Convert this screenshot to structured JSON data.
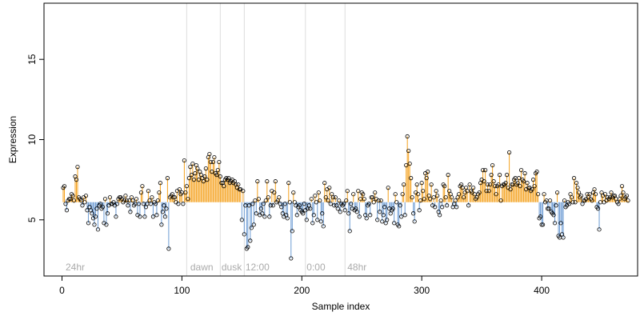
{
  "chart_data": {
    "type": "scatter",
    "xlabel": "Sample index",
    "ylabel": "Expression",
    "xlim": [
      -15,
      480
    ],
    "ylim": [
      1.5,
      18.5
    ],
    "x_ticks": [
      0,
      100,
      200,
      300,
      400
    ],
    "y_ticks": [
      5,
      10,
      15
    ],
    "baseline": 6.1,
    "colors": {
      "point_stroke": "#000000",
      "above_baseline": "#f4a11d",
      "below_baseline": "#6a9ad3",
      "vertical_lines": "#dddddd",
      "annotation_text": "#aaaaaa",
      "axis": "#000000"
    },
    "vlines": [
      104,
      132,
      152,
      203,
      236
    ],
    "annotations": [
      {
        "x": 3,
        "label": "24hr"
      },
      {
        "x": 107,
        "label": "dawn"
      },
      {
        "x": 133,
        "label": "dusk"
      },
      {
        "x": 153,
        "label": "12:00"
      },
      {
        "x": 204,
        "label": "0:00"
      },
      {
        "x": 238,
        "label": "48hr"
      }
    ],
    "values": [
      7.0,
      7.1,
      6.0,
      5.6,
      6.2,
      6.3,
      6.3,
      6.6,
      6.5,
      6.2,
      7.7,
      7.5,
      8.3,
      6.4,
      6.3,
      6.2,
      5.9,
      6.4,
      6.1,
      6.5,
      5.6,
      4.8,
      5.8,
      5.6,
      5.4,
      5.1,
      4.7,
      5.2,
      5.7,
      4.4,
      5.9,
      6.0,
      5.7,
      5.8,
      4.8,
      6.3,
      4.7,
      5.4,
      5.9,
      6.4,
      6.0,
      6.0,
      6.1,
      5.9,
      5.2,
      6.0,
      6.3,
      6.4,
      6.4,
      6.3,
      6.1,
      6.2,
      6.5,
      6.2,
      5.9,
      6.2,
      5.5,
      6.4,
      6.2,
      5.9,
      6.0,
      6.3,
      5.3,
      6.0,
      5.2,
      6.7,
      7.1,
      6.0,
      5.2,
      5.8,
      6.0,
      6.8,
      6.2,
      6.0,
      6.4,
      5.2,
      6.1,
      6.0,
      5.3,
      6.2,
      6.7,
      7.3,
      4.7,
      5.5,
      5.9,
      5.2,
      5.7,
      7.6,
      3.2,
      6.4,
      6.5,
      6.6,
      6.4,
      6.4,
      6.1,
      6.8,
      6.0,
      6.9,
      6.6,
      6.7,
      6.0,
      8.7,
      6.7,
      7.1,
      6.3,
      7.6,
      8.3,
      7.8,
      8.5,
      7.5,
      7.9,
      8.4,
      8.2,
      7.5,
      8.0,
      7.8,
      7.6,
      7.4,
      7.7,
      8.2,
      7.5,
      8.9,
      9.1,
      8.6,
      8.0,
      8.6,
      8.9,
      7.9,
      7.8,
      8.1,
      8.6,
      7.7,
      7.3,
      7.3,
      7.1,
      7.5,
      7.6,
      7.5,
      7.6,
      7.3,
      7.4,
      7.5,
      7.3,
      7.4,
      7.2,
      7.0,
      7.2,
      6.9,
      6.9,
      5.0,
      6.8,
      4.1,
      5.9,
      3.2,
      3.3,
      5.9,
      3.7,
      4.5,
      6.0,
      4.7,
      6.2,
      5.4,
      7.4,
      6.3,
      5.3,
      5.7,
      5.4,
      6.0,
      5.2,
      6.2,
      7.4,
      6.4,
      5.2,
      5.9,
      6.8,
      5.9,
      6.7,
      7.4,
      6.1,
      6.2,
      6.4,
      6.0,
      5.8,
      5.4,
      5.2,
      6.0,
      5.3,
      5.1,
      7.3,
      6.1,
      2.6,
      4.3,
      6.7,
      6.1,
      5.9,
      5.3,
      5.8,
      5.9,
      5.6,
      5.5,
      5.4,
      6.0,
      5.6,
      5.0,
      5.7,
      5.9,
      5.7,
      6.3,
      4.8,
      5.3,
      6.5,
      6.1,
      5.0,
      6.7,
      6.2,
      4.9,
      5.4,
      4.6,
      7.3,
      6.4,
      6.9,
      6.2,
      7.0,
      6.0,
      6.6,
      6.4,
      5.9,
      6.4,
      5.9,
      5.7,
      6.2,
      5.5,
      6.0,
      5.9,
      6.0,
      5.6,
      6.2,
      6.8,
      5.4,
      4.3,
      6.0,
      5.7,
      6.6,
      5.6,
      5.7,
      5.5,
      6.8,
      5.2,
      6.3,
      6.7,
      6.6,
      6.3,
      5.3,
      5.1,
      5.9,
      6.0,
      5.3,
      6.4,
      6.4,
      6.1,
      6.7,
      6.3,
      5.0,
      6.2,
      5.5,
      6.2,
      4.9,
      5.3,
      5.8,
      4.8,
      5.0,
      7.0,
      5.7,
      5.4,
      5.6,
      5.7,
      4.8,
      6.6,
      6.1,
      4.7,
      4.6,
      5.9,
      5.2,
      6.6,
      7.2,
      5.3,
      8.4,
      10.2,
      9.3,
      8.5,
      7.6,
      6.4,
      5.4,
      4.9,
      6.7,
      7.2,
      6.6,
      5.6,
      6.2,
      7.3,
      6.8,
      6.3,
      7.9,
      7.6,
      8.0,
      6.5,
      6.3,
      7.2,
      5.9,
      6.4,
      5.8,
      6.8,
      6.5,
      5.5,
      5.3,
      6.2,
      5.8,
      7.2,
      7.1,
      6.4,
      5.9,
      7.8,
      6.8,
      6.6,
      6.4,
      5.8,
      6.0,
      6.2,
      5.8,
      6.4,
      6.6,
      7.1,
      7.2,
      7.0,
      6.4,
      6.7,
      7.0,
      6.8,
      5.9,
      7.2,
      6.8,
      6.7,
      7.0,
      6.6,
      6.3,
      6.4,
      6.6,
      6.7,
      7.3,
      7.5,
      8.1,
      7.4,
      8.1,
      6.8,
      7.2,
      6.8,
      7.2,
      7.8,
      8.4,
      7.4,
      7.1,
      6.6,
      7.1,
      7.2,
      7.8,
      6.2,
      7.1,
      7.2,
      7.2,
      7.3,
      7.8,
      7.0,
      9.2,
      6.9,
      7.2,
      7.2,
      7.5,
      7.6,
      7.2,
      7.3,
      7.6,
      7.1,
      8.1,
      7.5,
      7.4,
      7.9,
      6.9,
      7.3,
      7.0,
      7.0,
      6.8,
      6.9,
      7.5,
      7.1,
      7.9,
      8.0,
      6.6,
      5.1,
      5.2,
      4.7,
      4.7,
      6.6,
      6.1,
      6.2,
      5.7,
      5.7,
      6.2,
      5.5,
      5.4,
      5.3,
      4.8,
      5.9,
      6.7,
      4.0,
      3.9,
      4.8,
      4.1,
      3.9,
      6.2,
      5.8,
      5.9,
      6.1,
      6.0,
      6.6,
      6.4,
      6.1,
      7.6,
      6.1,
      7.3,
      7.0,
      6.7,
      6.4,
      6.5,
      6.0,
      6.2,
      6.2,
      6.3,
      6.6,
      6.4,
      6.6,
      6.3,
      6.2,
      6.7,
      6.9,
      6.6,
      5.8,
      5.7,
      4.4,
      6.1,
      6.7,
      6.5,
      6.1,
      6.6,
      6.2,
      6.4,
      6.3,
      6.4,
      6.7,
      6.4,
      6.5,
      6.5,
      6.3,
      6.1,
      6.0,
      6.3,
      6.5,
      7.1,
      6.7,
      6.3,
      6.4,
      6.5,
      6.2
    ]
  }
}
